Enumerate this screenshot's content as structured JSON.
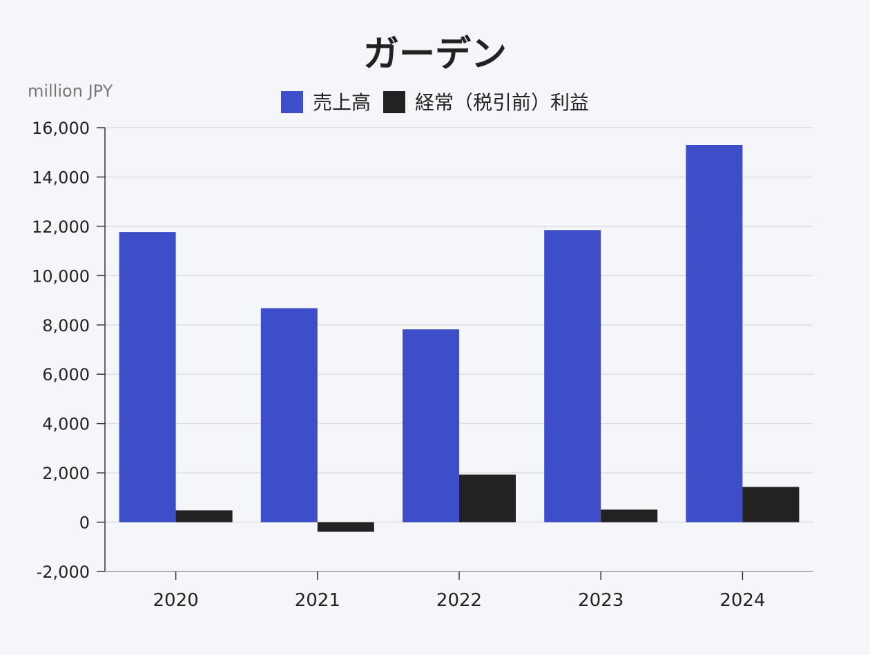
{
  "chart_data": {
    "type": "bar",
    "title": "ガーデン",
    "unit_label": "million JPY",
    "categories": [
      "2020",
      "2021",
      "2022",
      "2023",
      "2024"
    ],
    "series": [
      {
        "name": "売上高",
        "values": [
          11770,
          8680,
          7820,
          11850,
          15300
        ]
      },
      {
        "name": "経常（税引前）利益",
        "values": [
          480,
          -390,
          1930,
          510,
          1430
        ]
      }
    ],
    "ylim": [
      -2000,
      16000
    ],
    "yticks": [
      -2000,
      0,
      2000,
      4000,
      6000,
      8000,
      10000,
      12000,
      14000,
      16000
    ],
    "ytick_labels": [
      "-2,000",
      "0",
      "2,000",
      "4,000",
      "6,000",
      "8,000",
      "10,000",
      "12,000",
      "14,000",
      "16,000"
    ],
    "grid": true,
    "legend_position": "top-center",
    "colors": [
      "#3d4ec8",
      "#222222"
    ],
    "background": "#f5f6fa",
    "grid_color": "#dcdde3",
    "axis_color": "#333333",
    "title_color": "#222222",
    "unit_color": "#777777"
  }
}
